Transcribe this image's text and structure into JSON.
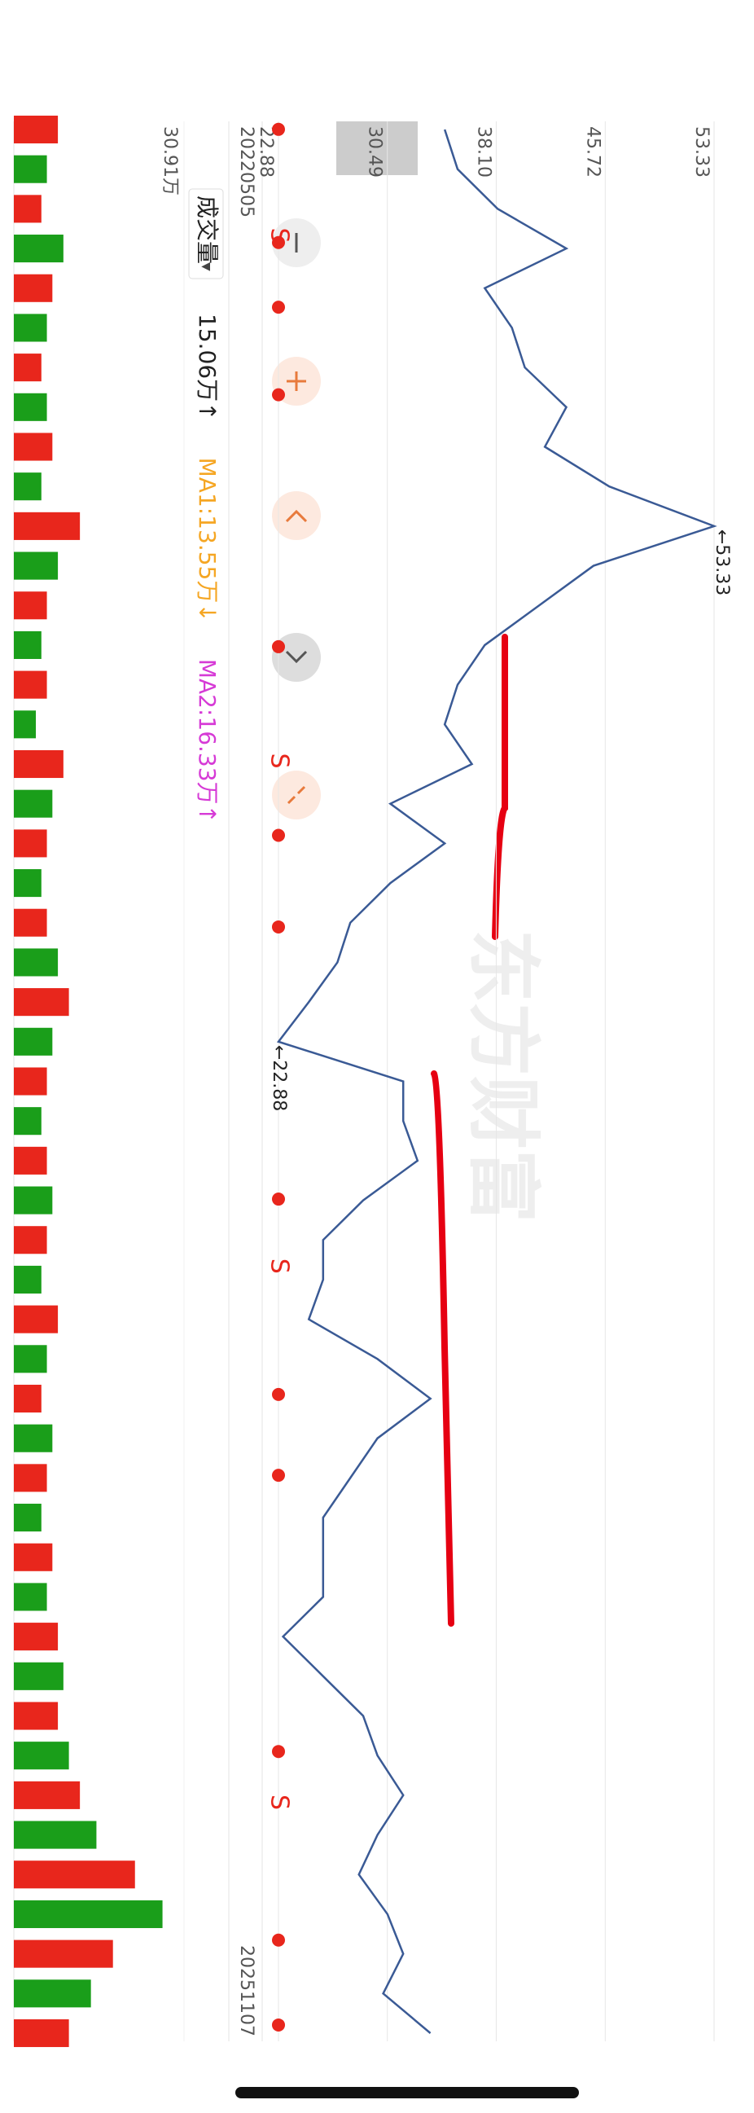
{
  "chart_data": [
    {
      "type": "line",
      "categories": [
        "20220505",
        null,
        null,
        null,
        null,
        null,
        null,
        null,
        null,
        null,
        null,
        null,
        null,
        null,
        null,
        null,
        null,
        null,
        null,
        null,
        null,
        null,
        null,
        null,
        null,
        null,
        null,
        null,
        null,
        null,
        null,
        null,
        null,
        null,
        null,
        null,
        null,
        null,
        null,
        null,
        null,
        null,
        null,
        null,
        null,
        null,
        null,
        null,
        "20251107"
      ],
      "values": [
        34.5,
        35.4,
        38.2,
        43,
        37.3,
        39.2,
        40.1,
        43,
        41.5,
        46,
        53.33,
        44.9,
        41.1,
        37.3,
        35.4,
        34.5,
        36.4,
        30.7,
        34.5,
        30.7,
        27.9,
        27,
        25,
        22.88,
        31.6,
        31.6,
        32.6,
        28.8,
        26,
        26,
        25,
        29.8,
        33.5,
        29.8,
        27.9,
        26,
        26,
        26,
        23.2,
        26,
        28.8,
        29.8,
        31.6,
        29.8,
        28.5,
        30.5,
        31.6,
        30.2,
        33.5
      ],
      "color": "#3a5a95",
      "ylim": [
        22.88,
        53.33
      ],
      "yticks": [
        22.88,
        30.49,
        {
          "value": 38.1,
          "label": "38.10"
        },
        45.72,
        53.33
      ],
      "grid": true,
      "annotations": [
        "←53.33",
        "←22.88"
      ]
    },
    {
      "type": "bar",
      "title": "成交量",
      "values": [
        8,
        6,
        5,
        9,
        7,
        6,
        5,
        6,
        7,
        5,
        12,
        8,
        6,
        5,
        6,
        4,
        9,
        7,
        6,
        5,
        6,
        8,
        10,
        7,
        6,
        5,
        6,
        7,
        6,
        5,
        8,
        6,
        5,
        7,
        6,
        5,
        7,
        6,
        8,
        9,
        8,
        10,
        12,
        15,
        22,
        27,
        18,
        14,
        10
      ],
      "colors": [
        "#e8261c",
        "#1a9e1a"
      ],
      "ylim": [
        0,
        30.91
      ],
      "yticks": [
        {
          "value": 30.91,
          "label": "30.91万"
        }
      ],
      "stats": [
        "15.06万↑",
        "MA1:13.55万↓",
        "MA2:16.33万↑"
      ],
      "stat_colors": [
        "#222222",
        "#f5a623",
        "#d63ad6"
      ]
    }
  ],
  "signals": [
    "S",
    "S",
    "S",
    "S"
  ],
  "watermark": "东方财富"
}
